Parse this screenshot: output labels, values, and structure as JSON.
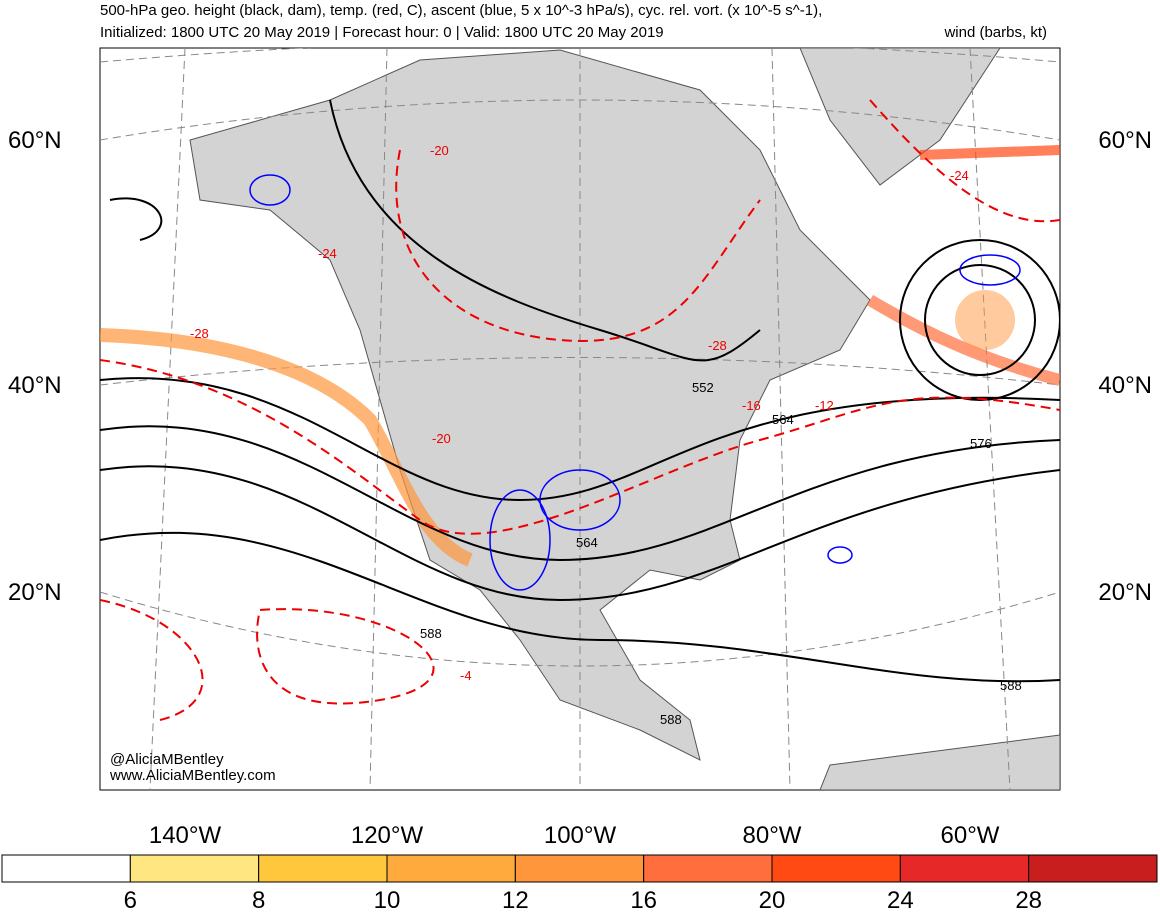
{
  "header": {
    "title": "500-hPa geo. height (black, dam), temp. (red, C), ascent (blue, 5 x 10^-3 hPa/s), cyc. rel. vort. (x 10^-5 s^-1),",
    "subtitle": "Initialized: 1800 UTC 20 May 2019 | Forecast hour: 0 | Valid: 1800 UTC 20 May 2019",
    "subtitle_right": "wind (barbs, kt)"
  },
  "map": {
    "lat_labels": [
      "60°N",
      "40°N",
      "20°N"
    ],
    "lon_labels": [
      "140°W",
      "120°W",
      "100°W",
      "80°W",
      "60°W"
    ],
    "height_labels": [
      "552",
      "564",
      "576",
      "588",
      "588",
      "588",
      "564"
    ],
    "temp_labels": [
      "-20",
      "-20",
      "-24",
      "-28",
      "-4",
      "-12",
      "-16",
      "-24",
      "-28"
    ],
    "credits": [
      "@AliciaMBentley",
      "www.AliciaMBentley.com"
    ]
  },
  "colorbar": {
    "ticks": [
      6,
      8,
      10,
      12,
      16,
      20,
      24,
      28
    ],
    "colors": [
      "#ffffff",
      "#ffe680",
      "#ffc83c",
      "#ffaa3c",
      "#ff963c",
      "#ff6e3c",
      "#ff4a14",
      "#e62828",
      "#c81e1e"
    ]
  }
}
